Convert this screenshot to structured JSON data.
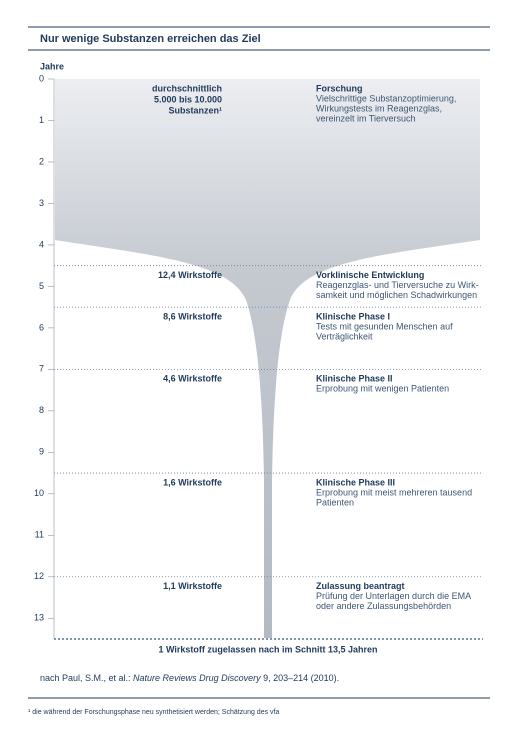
{
  "chart_data": {
    "type": "funnel",
    "title": "Nur wenige Substanzen erreichen das Ziel",
    "y_label": "Jahre",
    "ylim": [
      0,
      13.5
    ],
    "yticks": [
      0,
      1,
      2,
      3,
      4,
      5,
      6,
      7,
      8,
      9,
      10,
      11,
      12,
      13
    ],
    "stages": [
      {
        "start": 0,
        "end": 4.5,
        "count": [
          "durchschnittlich",
          "5.000 bis 10.000",
          "Substanzen¹"
        ],
        "title": "Forschung",
        "description": [
          "Vielschrittige Substanzoptimierung,",
          "Wirkungstests im Reagenzglas,",
          "vereinzelt im Tierversuch"
        ]
      },
      {
        "start": 4.5,
        "end": 5.5,
        "count": [
          "12,4 Wirkstoffe"
        ],
        "title": "Vorklinische Entwicklung",
        "description": [
          "Reagenzglas- und Tierversuche zu Wirk-",
          "samkeit und möglichen Schadwirkungen"
        ]
      },
      {
        "start": 5.5,
        "end": 7,
        "count": [
          "8,6 Wirkstoffe"
        ],
        "title": "Klinische Phase I",
        "description": [
          "Tests mit gesunden Menschen auf",
          "Verträglichkeit"
        ]
      },
      {
        "start": 7,
        "end": 9.5,
        "count": [
          "4,6 Wirkstoffe"
        ],
        "title": "Klinische Phase II",
        "description": [
          "Erprobung mit wenigen Patienten"
        ]
      },
      {
        "start": 9.5,
        "end": 12,
        "count": [
          "1,6 Wirkstoffe"
        ],
        "title": "Klinische Phase III",
        "description": [
          "Erprobung mit meist mehreren tausend",
          "Patienten"
        ]
      },
      {
        "start": 12,
        "end": 13.5,
        "count": [
          "1,1 Wirkstoffe"
        ],
        "title": "Zulassung beantragt",
        "description": [
          "Prüfung der Unterlagen durch die EMA",
          "oder andere Zulassungsbehörden"
        ]
      }
    ],
    "result": "1 Wirkstoff zugelassen nach im Schnitt 13,5 Jahren",
    "source": [
      "nach Paul, S.M., et al.: ",
      "Nature Reviews Drug Discovery",
      " 9, 203–214 (2010)."
    ],
    "footnote": "¹ die während der Forschungsphase neu synthetisiert werden; Schätzung des vfa"
  }
}
